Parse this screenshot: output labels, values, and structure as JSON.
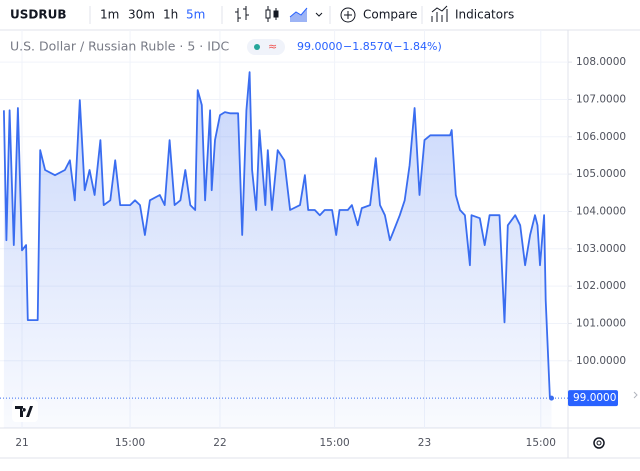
{
  "toolbar": {
    "symbol": "USDRUB",
    "intervals": [
      "1m",
      "30m",
      "1h",
      "5m"
    ],
    "compare": "Compare",
    "indicators": "Indicators"
  },
  "chart_data": {
    "type": "line",
    "title": "U.S. Dollar / Russian Ruble · 5 · IDC",
    "change": "−1.8570",
    "change_percent": "(−1.84%)",
    "last_price": {
      "value": 99,
      "label": "99.0000"
    },
    "color": "#3a6df0",
    "x": [
      -2.2,
      -1.9,
      -1.5,
      -1.0,
      -0.5,
      0,
      0.5,
      0.7,
      1.9,
      2.2,
      2.8,
      4.0,
      5.2,
      5.8,
      6.4,
      7.0,
      7.6,
      8.2,
      8.8,
      9.5,
      9.9,
      10.7,
      11.3,
      11.9,
      13.1,
      13.7,
      14.3,
      14.9,
      15.5,
      16.7,
      17.3,
      17.9,
      18.5,
      19.2,
      19.8,
      20.4,
      21.0,
      21.3,
      21.8,
      22.2,
      22.8,
      23.0,
      23.4,
      24.0,
      24.6,
      25.2,
      26.2,
      26.7,
      27.2,
      27.6,
      27.9,
      28.4,
      28.8,
      29.5,
      29.8,
      30.3,
      31.0,
      31.8,
      32.5,
      33.7,
      34.3,
      34.7,
      35.5,
      36.1,
      36.7,
      37.6,
      38.1,
      38.5,
      39.5,
      40.0,
      40.7,
      41.2,
      42.2,
      42.9,
      43.4,
      44.0,
      44.6,
      45.0,
      45.8,
      46.4,
      47.0,
      47.6,
      48.2,
      48.8,
      49.5,
      51.9,
      52.1,
      52.6,
      53.1,
      53.7,
      54.3,
      54.5,
      55.5,
      56.1,
      56.7,
      57.9,
      58.5,
      58.9,
      59.8,
      60.4,
      61.0,
      61.6,
      62.2,
      62.5,
      62.8,
      63.3,
      63.5,
      64.0,
      64.2
    ],
    "values": [
      106.71,
      103.23,
      106.71,
      103.1,
      106.77,
      102.96,
      103.1,
      101.09,
      101.09,
      105.64,
      105.11,
      104.97,
      105.11,
      105.37,
      104.3,
      106.98,
      104.57,
      105.11,
      104.44,
      105.91,
      104.17,
      104.3,
      105.37,
      104.17,
      104.17,
      104.3,
      104.17,
      103.37,
      104.3,
      104.44,
      104.17,
      105.91,
      104.17,
      104.3,
      105.11,
      104.17,
      104.04,
      107.25,
      106.85,
      104.3,
      106.71,
      104.57,
      105.91,
      106.58,
      106.66,
      106.63,
      106.63,
      103.37,
      106.71,
      107.73,
      105.11,
      104.04,
      106.18,
      104.17,
      105.64,
      104.04,
      105.64,
      105.37,
      104.04,
      104.17,
      104.97,
      104.04,
      104.04,
      103.9,
      104.04,
      104.04,
      103.37,
      104.04,
      104.04,
      104.17,
      103.63,
      104.09,
      104.17,
      105.43,
      104.17,
      103.9,
      103.23,
      103.45,
      103.9,
      104.3,
      105.24,
      106.77,
      104.44,
      105.91,
      106.04,
      106.04,
      106.18,
      104.44,
      104.04,
      103.9,
      102.56,
      103.9,
      103.82,
      103.1,
      103.9,
      103.9,
      101.03,
      103.63,
      103.9,
      103.63,
      102.56,
      103.37,
      103.9,
      103.63,
      102.56,
      103.9,
      101.62,
      99.0,
      99.0
    ],
    "xlim": [
      -2.67,
      66.2
    ],
    "xticks": [
      {
        "value": 0,
        "label": "21"
      },
      {
        "value": 13.1,
        "label": "15:00"
      },
      {
        "value": 24.0,
        "label": "22"
      },
      {
        "value": 37.9,
        "label": "15:00"
      },
      {
        "value": 48.8,
        "label": "23"
      },
      {
        "value": 62.9,
        "label": "15:00"
      }
    ],
    "ylim": [
      98.2,
      108.86
    ],
    "yticks": [
      {
        "value": 100,
        "label": "100.0000"
      },
      {
        "value": 101,
        "label": "101.0000"
      },
      {
        "value": 102,
        "label": "102.0000"
      },
      {
        "value": 103,
        "label": "103.0000"
      },
      {
        "value": 104,
        "label": "104.0000"
      },
      {
        "value": 105,
        "label": "105.0000"
      },
      {
        "value": 106,
        "label": "106.0000"
      },
      {
        "value": 107,
        "label": "107.0000"
      },
      {
        "value": 108,
        "label": "108.0000"
      }
    ],
    "grid": true
  }
}
